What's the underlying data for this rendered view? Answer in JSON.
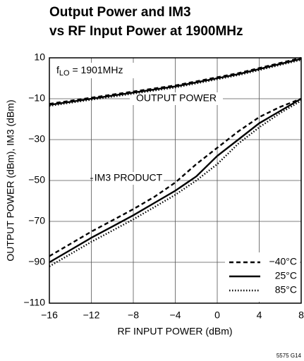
{
  "chart_data": {
    "type": "line",
    "title": [
      "Output Power and IM3",
      "vs RF Input Power at 1900MHz"
    ],
    "x_label": "RF INPUT POWER (dBm)",
    "y_label": "OUTPUT POWER (dBm), IM3 (dBm)",
    "annotations": {
      "output": "OUTPUT POWER",
      "im3": "IM3 PRODUCT",
      "flo": [
        "f",
        "LO",
        " = 1901MHz"
      ]
    },
    "footer": "5575 G14",
    "x": [
      -16,
      -14,
      -12,
      -10,
      -8,
      -6,
      -4,
      -2,
      0,
      2,
      4,
      6,
      8
    ],
    "xlim": [
      -16,
      8
    ],
    "xticks": [
      {
        "value": -16,
        "label": "−16"
      },
      {
        "value": -12,
        "label": "−12"
      },
      {
        "value": -8,
        "label": "−8"
      },
      {
        "value": -4,
        "label": "−4"
      },
      0,
      4,
      8
    ],
    "ylim": [
      -110,
      10
    ],
    "yticks": [
      10,
      {
        "value": -10,
        "label": "−10"
      },
      {
        "value": -30,
        "label": "−30"
      },
      {
        "value": -50,
        "label": "−50"
      },
      {
        "value": -70,
        "label": "−70"
      },
      {
        "value": -90,
        "label": "−90"
      },
      {
        "value": -110,
        "label": "−110"
      }
    ],
    "grid": true,
    "legend": "lower right",
    "series": [
      {
        "name": "−40°C",
        "color": "#000000",
        "dash": "6,4",
        "values": [
          -12.5,
          -11,
          -9.5,
          -8,
          -6.5,
          -5,
          -3.5,
          -1.5,
          0.5,
          2.5,
          5,
          7.5,
          10
        ],
        "im3_values": [
          -87,
          -81,
          -75,
          -69.5,
          -64,
          -58,
          -51,
          -42,
          -34,
          -26,
          -19,
          -14,
          -10
        ]
      },
      {
        "name": "25°C",
        "color": "#000000",
        "dash": "none",
        "values": [
          -13,
          -11.5,
          -10,
          -8.5,
          -7,
          -5.5,
          -4,
          -2,
          0,
          2,
          4.5,
          7,
          9.5
        ],
        "im3_values": [
          -90,
          -84,
          -78,
          -72.5,
          -67,
          -61,
          -55,
          -48,
          -38,
          -30,
          -22,
          -16,
          -10
        ]
      },
      {
        "name": "85°C",
        "color": "#000000",
        "dash": "1.5,2.5",
        "values": [
          -13.5,
          -12,
          -10.5,
          -9,
          -7.5,
          -6,
          -4.5,
          -2.5,
          -0.5,
          1.5,
          4,
          6.5,
          9
        ],
        "im3_values": [
          -92,
          -86,
          -80,
          -74.5,
          -69,
          -63,
          -57,
          -50,
          -42,
          -32,
          -24,
          -17,
          -11
        ]
      }
    ]
  }
}
